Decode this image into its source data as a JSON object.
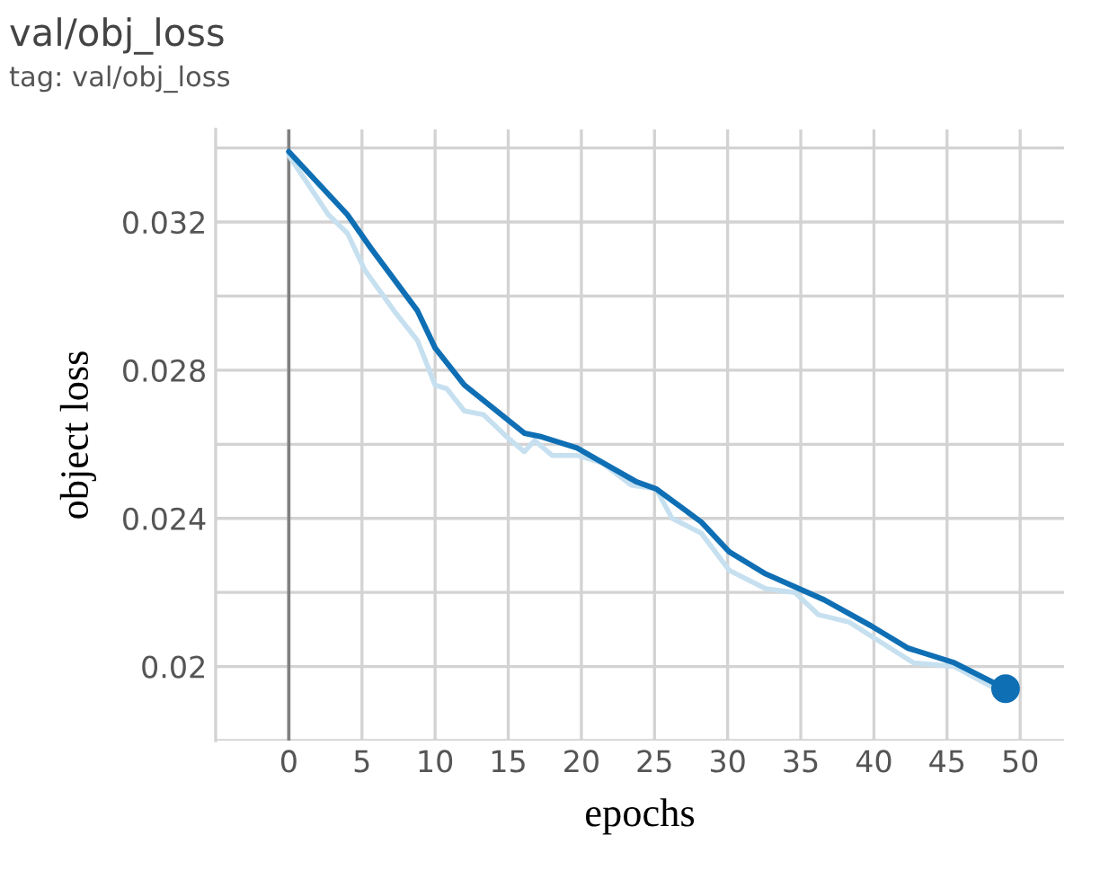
{
  "chart_data": {
    "type": "line",
    "title": "val/obj_loss",
    "subtitle": "tag: val/obj_loss",
    "xlabel": "epochs",
    "ylabel": "object loss",
    "series": [
      {
        "color": "#c6e0f0",
        "x": [
          0,
          2.7,
          4.0,
          5.2,
          7.2,
          8.8,
          10.0,
          10.8,
          12.0,
          13.3,
          14.9,
          16.1,
          16.8,
          18.0,
          19.7,
          21.4,
          23.4,
          25.1,
          26.2,
          28.2,
          30.1,
          32.6,
          34.6,
          36.2,
          38.3,
          40.3,
          42.7,
          45.5,
          48.3
        ],
        "values": [
          0.0338,
          0.0322,
          0.0317,
          0.0307,
          0.0296,
          0.0288,
          0.0276,
          0.0275,
          0.0269,
          0.0268,
          0.0262,
          0.0258,
          0.0261,
          0.0257,
          0.0257,
          0.0255,
          0.0249,
          0.0248,
          0.024,
          0.0236,
          0.0226,
          0.0221,
          0.022,
          0.0214,
          0.0212,
          0.0207,
          0.0201,
          0.02,
          0.0194
        ]
      },
      {
        "color": "#0f6fb4",
        "x": [
          0,
          4.0,
          5.6,
          8.8,
          10.0,
          12.0,
          16.1,
          17.3,
          19.7,
          23.7,
          25.1,
          28.2,
          30.1,
          32.6,
          36.6,
          39.8,
          42.3,
          45.5,
          49.0
        ],
        "values": [
          0.0339,
          0.0322,
          0.0313,
          0.0296,
          0.0286,
          0.0276,
          0.0263,
          0.0262,
          0.0259,
          0.025,
          0.0248,
          0.0239,
          0.0231,
          0.0225,
          0.0218,
          0.0211,
          0.0205,
          0.0201,
          0.0194
        ]
      },
      {
        "type": "scatter",
        "color": "#0f6fb4",
        "x": [
          49.0
        ],
        "values": [
          0.0194
        ]
      }
    ],
    "xlim": [
      -5,
      53
    ],
    "ylim": [
      0.018,
      0.0345
    ],
    "xticks": [
      0,
      5,
      10,
      15,
      20,
      25,
      30,
      35,
      40,
      45,
      50
    ],
    "yticks": [
      {
        "value": 0.018,
        "label": null
      },
      {
        "value": 0.02,
        "label": "0.02"
      },
      {
        "value": 0.022,
        "label": null
      },
      0.024,
      {
        "value": 0.026,
        "label": null
      },
      0.028,
      {
        "value": 0.03,
        "label": null
      },
      0.032,
      {
        "value": 0.034,
        "label": null
      }
    ],
    "ref_lines": [
      {
        "axis": "x",
        "value": 0,
        "color": "#808080"
      }
    ],
    "grid": true,
    "legend": false
  }
}
